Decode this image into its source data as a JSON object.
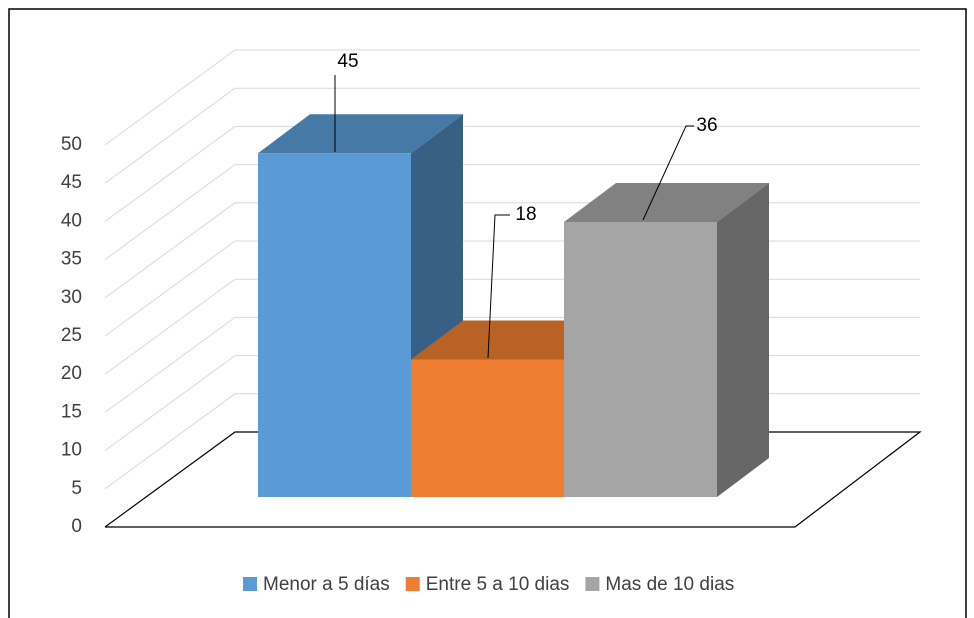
{
  "chart_data": {
    "type": "bar3d",
    "series": [
      {
        "name": "Menor a 5 días",
        "color": "#5b9bd5",
        "values": [
          45
        ]
      },
      {
        "name": "Entre 5 a 10 dias",
        "color": "#ed7d31",
        "values": [
          18
        ]
      },
      {
        "name": "Mas de 10 dias",
        "color": "#a5a5a5",
        "values": [
          36
        ]
      }
    ],
    "ylim": [
      0,
      50
    ],
    "yticks": [
      0,
      5,
      10,
      15,
      20,
      25,
      30,
      35,
      40,
      45,
      50
    ],
    "grid": true,
    "legend": "bottom"
  }
}
